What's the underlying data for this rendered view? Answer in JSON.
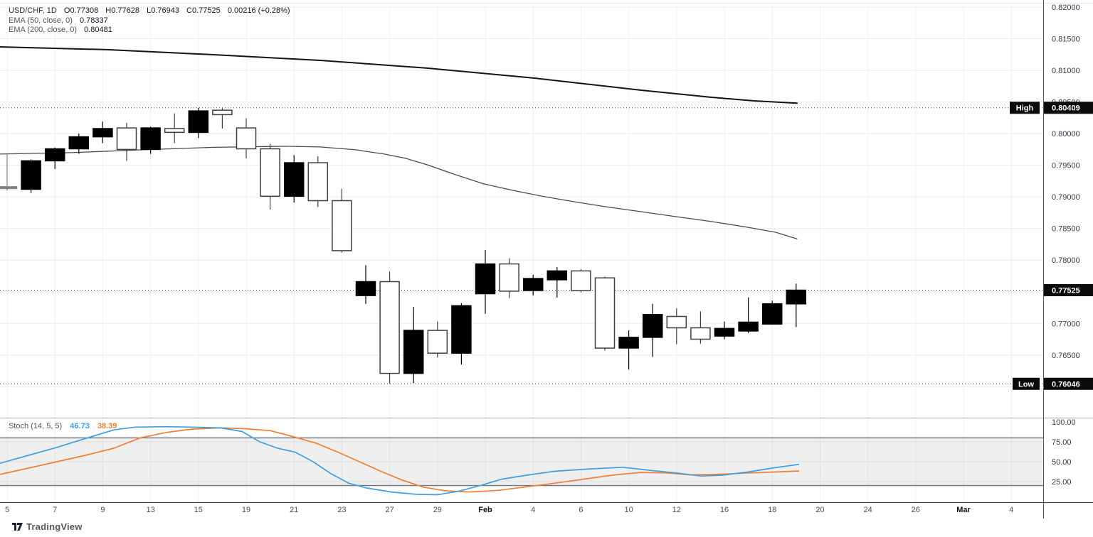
{
  "legend": {
    "symbol": "USD/CHF, 1D",
    "open": "O0.77308",
    "high": "H0.77628",
    "low": "L0.76943",
    "close": "C0.77525",
    "change": "0.00216 (+0.28%)",
    "ema50_label": "EMA (50, close, 0)",
    "ema50_value": "0.78337",
    "ema200_label": "EMA (200, close, 0)",
    "ema200_value": "0.80481"
  },
  "stoch_legend": {
    "label": "Stoch (14, 5, 5)",
    "k": "46.73",
    "d": "38.39"
  },
  "logo": {
    "text": "TradingView"
  },
  "colors": {
    "up_candle": "#000000",
    "down_candle_border": "#3f3f3f",
    "doji": "#808080",
    "ema50": "#4a4a4a",
    "ema200": "#141414",
    "stoch_k": "#3f9fe0",
    "stoch_d": "#ef7f33",
    "badge_bg": "#0b0b0d",
    "badge_text": "#ffffff",
    "grid": "#ececec",
    "axis_text": "#363a45"
  },
  "chart_data": {
    "type": "candlestick",
    "title": "USD/CHF, 1D",
    "price_range": {
      "top": 0.82,
      "bottom": 0.7551
    },
    "price_grid": [
      0.82,
      0.815,
      0.81,
      0.805,
      0.8,
      0.795,
      0.79,
      0.785,
      0.78,
      0.775,
      0.77,
      0.765,
      0.76
    ],
    "price_axis_labels": [
      {
        "text": "0.82000",
        "value": 0.82
      },
      {
        "text": "0.81500",
        "value": 0.815
      },
      {
        "text": "0.81000",
        "value": 0.81
      },
      {
        "text": "0.80500",
        "value": 0.805
      },
      {
        "text": "0.80000",
        "value": 0.8
      },
      {
        "text": "0.79500",
        "value": 0.795
      },
      {
        "text": "0.79000",
        "value": 0.79
      },
      {
        "text": "0.78500",
        "value": 0.785
      },
      {
        "text": "0.78000",
        "value": 0.78
      },
      {
        "text": "0.77000",
        "value": 0.77
      },
      {
        "text": "0.76500",
        "value": 0.765
      }
    ],
    "badges": {
      "high": {
        "label": "High",
        "text": "0.80409",
        "value": 0.80409
      },
      "low": {
        "label": "Low",
        "text": "0.76046",
        "value": 0.76046
      },
      "last": {
        "text": "0.77525",
        "value": 0.77525
      }
    },
    "time_axis": [
      {
        "text": "5",
        "bar": 0
      },
      {
        "text": "7",
        "bar": 2
      },
      {
        "text": "9",
        "bar": 4
      },
      {
        "text": "13",
        "bar": 6
      },
      {
        "text": "15",
        "bar": 8
      },
      {
        "text": "19",
        "bar": 10
      },
      {
        "text": "21",
        "bar": 12
      },
      {
        "text": "23",
        "bar": 14
      },
      {
        "text": "27",
        "bar": 16
      },
      {
        "text": "29",
        "bar": 18
      },
      {
        "text": "Feb",
        "bar": 20,
        "month": true
      },
      {
        "text": "4",
        "bar": 22
      },
      {
        "text": "6",
        "bar": 24
      },
      {
        "text": "10",
        "bar": 26
      },
      {
        "text": "12",
        "bar": 28
      },
      {
        "text": "16",
        "bar": 30
      },
      {
        "text": "18",
        "bar": 32
      },
      {
        "text": "20",
        "bar": 34
      },
      {
        "text": "24",
        "bar": 36
      },
      {
        "text": "26",
        "bar": 38
      },
      {
        "text": "Mar",
        "bar": 40,
        "month": true
      },
      {
        "text": "4",
        "bar": 42
      }
    ],
    "candles": [
      {
        "d": "Jan 5",
        "o": 0.7916,
        "h": 0.7968,
        "l": 0.791,
        "c": 0.7915
      },
      {
        "d": "Jan 6",
        "o": 0.7912,
        "h": 0.7959,
        "l": 0.7906,
        "c": 0.7957
      },
      {
        "d": "Jan 7",
        "o": 0.7957,
        "h": 0.7978,
        "l": 0.7944,
        "c": 0.7976
      },
      {
        "d": "Jan 8",
        "o": 0.7976,
        "h": 0.8,
        "l": 0.7968,
        "c": 0.7995
      },
      {
        "d": "Jan 9",
        "o": 0.7995,
        "h": 0.8019,
        "l": 0.7985,
        "c": 0.8008
      },
      {
        "d": "Jan 12",
        "o": 0.8009,
        "h": 0.8017,
        "l": 0.7957,
        "c": 0.7975
      },
      {
        "d": "Jan 13",
        "o": 0.7975,
        "h": 0.8011,
        "l": 0.7968,
        "c": 0.8009
      },
      {
        "d": "Jan 14",
        "o": 0.8008,
        "h": 0.8032,
        "l": 0.7985,
        "c": 0.8002
      },
      {
        "d": "Jan 15",
        "o": 0.8002,
        "h": 0.80409,
        "l": 0.7993,
        "c": 0.8036
      },
      {
        "d": "Jan 16",
        "o": 0.8037,
        "h": 0.804,
        "l": 0.8008,
        "c": 0.803
      },
      {
        "d": "Jan 19",
        "o": 0.8009,
        "h": 0.8024,
        "l": 0.7961,
        "c": 0.7976
      },
      {
        "d": "Jan 20",
        "o": 0.7976,
        "h": 0.7984,
        "l": 0.788,
        "c": 0.7901
      },
      {
        "d": "Jan 21",
        "o": 0.7901,
        "h": 0.7966,
        "l": 0.7891,
        "c": 0.7954
      },
      {
        "d": "Jan 22",
        "o": 0.7954,
        "h": 0.7964,
        "l": 0.7884,
        "c": 0.7894
      },
      {
        "d": "Jan 23",
        "o": 0.7894,
        "h": 0.7913,
        "l": 0.7812,
        "c": 0.7815
      },
      {
        "d": "Jan 26",
        "o": 0.7744,
        "h": 0.7792,
        "l": 0.7731,
        "c": 0.7766
      },
      {
        "d": "Jan 27",
        "o": 0.7766,
        "h": 0.7782,
        "l": 0.76046,
        "c": 0.7621
      },
      {
        "d": "Jan 28",
        "o": 0.7621,
        "h": 0.7726,
        "l": 0.7606,
        "c": 0.7689
      },
      {
        "d": "Jan 29",
        "o": 0.7689,
        "h": 0.7703,
        "l": 0.7646,
        "c": 0.7653
      },
      {
        "d": "Jan 30",
        "o": 0.7653,
        "h": 0.7732,
        "l": 0.7635,
        "c": 0.7728
      },
      {
        "d": "Feb 2",
        "o": 0.7747,
        "h": 0.7816,
        "l": 0.7715,
        "c": 0.7794
      },
      {
        "d": "Feb 3",
        "o": 0.7794,
        "h": 0.7803,
        "l": 0.774,
        "c": 0.7751
      },
      {
        "d": "Feb 4",
        "o": 0.7752,
        "h": 0.7777,
        "l": 0.7744,
        "c": 0.7771
      },
      {
        "d": "Feb 5",
        "o": 0.7769,
        "h": 0.7789,
        "l": 0.7741,
        "c": 0.7783
      },
      {
        "d": "Feb 6",
        "o": 0.7783,
        "h": 0.7786,
        "l": 0.7749,
        "c": 0.7752
      },
      {
        "d": "Feb 9",
        "o": 0.7772,
        "h": 0.7774,
        "l": 0.7657,
        "c": 0.7661
      },
      {
        "d": "Feb 10",
        "o": 0.7661,
        "h": 0.7689,
        "l": 0.7627,
        "c": 0.7678
      },
      {
        "d": "Feb 11",
        "o": 0.7678,
        "h": 0.7731,
        "l": 0.7647,
        "c": 0.7714
      },
      {
        "d": "Feb 12",
        "o": 0.7711,
        "h": 0.7724,
        "l": 0.7667,
        "c": 0.7693
      },
      {
        "d": "Feb 13",
        "o": 0.7693,
        "h": 0.7719,
        "l": 0.7668,
        "c": 0.7675
      },
      {
        "d": "Feb 16",
        "o": 0.768,
        "h": 0.7703,
        "l": 0.7675,
        "c": 0.7692
      },
      {
        "d": "Feb 17",
        "o": 0.7688,
        "h": 0.7741,
        "l": 0.7685,
        "c": 0.7702
      },
      {
        "d": "Feb 18",
        "o": 0.7699,
        "h": 0.7736,
        "l": 0.7698,
        "c": 0.7731
      },
      {
        "d": "Feb 19",
        "o": 0.77308,
        "h": 0.77628,
        "l": 0.76943,
        "c": 0.77525
      }
    ],
    "ema50": {
      "name": "EMA 50",
      "points": [
        [
          0,
          0.79677
        ],
        [
          100,
          0.79699
        ],
        [
          200,
          0.79744
        ],
        [
          300,
          0.79783
        ],
        [
          400,
          0.798
        ],
        [
          450,
          0.79789
        ],
        [
          500,
          0.79744
        ],
        [
          540,
          0.79677
        ],
        [
          570,
          0.79609
        ],
        [
          600,
          0.79508
        ],
        [
          640,
          0.79351
        ],
        [
          680,
          0.79205
        ],
        [
          720,
          0.79104
        ],
        [
          760,
          0.79014
        ],
        [
          800,
          0.78936
        ],
        [
          850,
          0.78846
        ],
        [
          900,
          0.78767
        ],
        [
          950,
          0.78688
        ],
        [
          1000,
          0.7861
        ],
        [
          1050,
          0.7852
        ],
        [
          1090,
          0.78441
        ],
        [
          1120,
          0.78337
        ]
      ]
    },
    "ema200": {
      "name": "EMA 200",
      "points": [
        [
          0,
          0.81371
        ],
        [
          150,
          0.81327
        ],
        [
          300,
          0.81248
        ],
        [
          450,
          0.81158
        ],
        [
          600,
          0.81035
        ],
        [
          750,
          0.80878
        ],
        [
          900,
          0.80687
        ],
        [
          1000,
          0.80574
        ],
        [
          1060,
          0.80518
        ],
        [
          1120,
          0.80481
        ]
      ]
    },
    "stoch": {
      "name": "Stoch (14, 5, 5)",
      "range": [
        0,
        100
      ],
      "band": [
        20,
        80
      ],
      "grid": [
        75,
        50,
        25
      ],
      "axis_labels": [
        {
          "text": "100.00",
          "value": 100
        },
        {
          "text": "75.00",
          "value": 75
        },
        {
          "text": "50.00",
          "value": 50
        },
        {
          "text": "25.00",
          "value": 25
        }
      ],
      "k_value": 46.73,
      "d_value": 38.39,
      "k": [
        [
          0,
          48
        ],
        [
          40,
          58
        ],
        [
          80,
          68
        ],
        [
          123,
          80
        ],
        [
          160,
          90
        ],
        [
          190,
          93.5
        ],
        [
          230,
          94
        ],
        [
          270,
          93.5
        ],
        [
          310,
          92.5
        ],
        [
          340,
          88
        ],
        [
          365,
          75
        ],
        [
          390,
          67
        ],
        [
          415,
          62
        ],
        [
          440,
          50
        ],
        [
          465,
          35
        ],
        [
          490,
          23
        ],
        [
          515,
          17
        ],
        [
          550,
          12
        ],
        [
          585,
          9
        ],
        [
          615,
          8.5
        ],
        [
          645,
          13
        ],
        [
          675,
          20
        ],
        [
          705,
          28
        ],
        [
          740,
          33
        ],
        [
          780,
          38
        ],
        [
          830,
          41
        ],
        [
          875,
          43
        ],
        [
          915,
          39
        ],
        [
          950,
          36
        ],
        [
          985,
          32
        ],
        [
          1015,
          33
        ],
        [
          1050,
          37
        ],
        [
          1085,
          42
        ],
        [
          1123,
          46.73
        ]
      ],
      "d": [
        [
          0,
          34
        ],
        [
          40,
          42
        ],
        [
          80,
          50
        ],
        [
          120,
          58
        ],
        [
          160,
          67
        ],
        [
          197,
          80
        ],
        [
          235,
          87
        ],
        [
          270,
          91
        ],
        [
          310,
          92.5
        ],
        [
          345,
          91.5
        ],
        [
          380,
          89
        ],
        [
          410,
          82
        ],
        [
          445,
          73
        ],
        [
          475,
          62
        ],
        [
          505,
          50
        ],
        [
          535,
          38
        ],
        [
          565,
          27
        ],
        [
          595,
          18
        ],
        [
          625,
          13.5
        ],
        [
          660,
          12
        ],
        [
          700,
          14
        ],
        [
          740,
          18.5
        ],
        [
          780,
          23
        ],
        [
          820,
          28
        ],
        [
          860,
          33
        ],
        [
          900,
          36.5
        ],
        [
          935,
          36
        ],
        [
          970,
          33.5
        ],
        [
          1005,
          34
        ],
        [
          1045,
          35.5
        ],
        [
          1085,
          37
        ],
        [
          1123,
          38.39
        ]
      ]
    }
  }
}
